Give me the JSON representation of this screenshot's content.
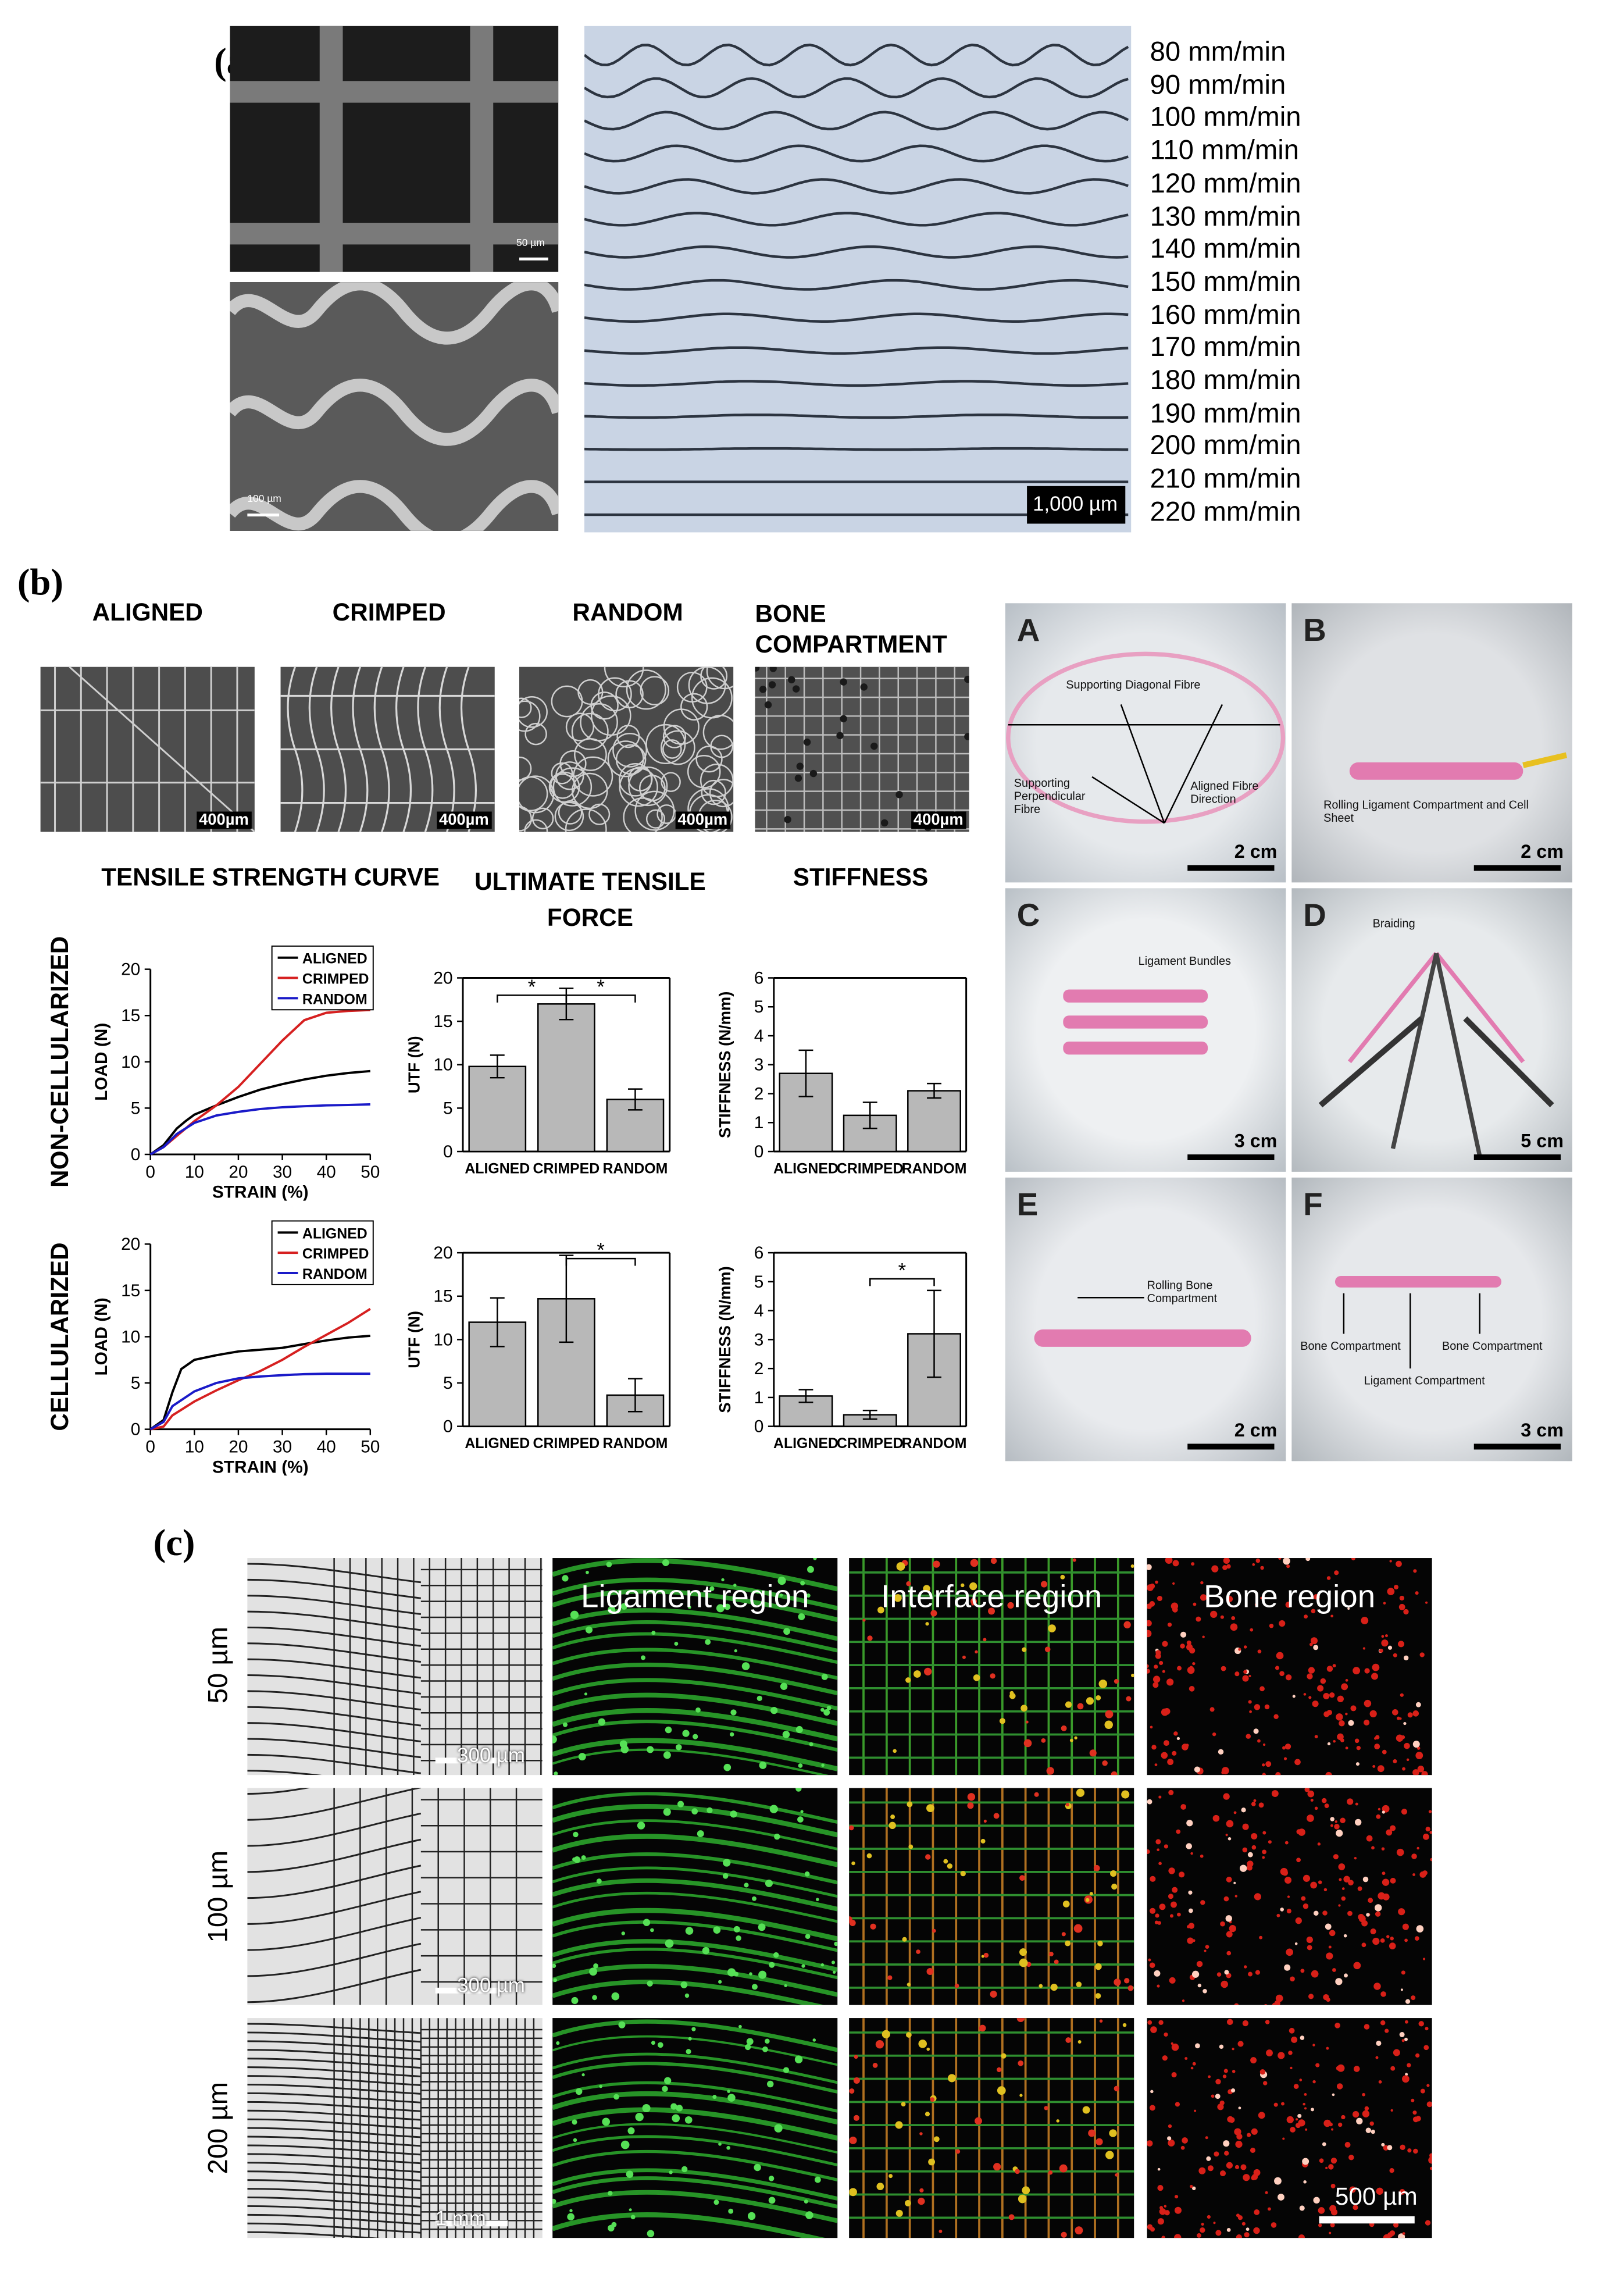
{
  "panel_labels": {
    "a": "(a)",
    "b": "(b)",
    "c": "(c)"
  },
  "panel_a": {
    "sem_scale_top": "50 µm",
    "sem_scale_bottom": "100 µm",
    "stereo_scale": "1,000 µm",
    "speeds": [
      "80 mm/min",
      "90 mm/min",
      "100 mm/min",
      "110 mm/min",
      "120 mm/min",
      "130 mm/min",
      "140 mm/min",
      "150 mm/min",
      "160 mm/min",
      "170 mm/min",
      "180 mm/min",
      "190 mm/min",
      "200 mm/min",
      "210 mm/min",
      "220 mm/min"
    ]
  },
  "panel_b": {
    "micrograph_titles": [
      "ALIGNED",
      "CRIMPED",
      "RANDOM",
      "BONE COMPARTMENT"
    ],
    "micrograph_scale": "400µm",
    "column_titles": {
      "tensile": "TENSILE STRENGTH CURVE",
      "utf": "ULTIMATE TENSILE FORCE",
      "stiffness": "STIFFNESS"
    },
    "row_titles": {
      "noncell": "NON-CELLULARIZED",
      "cell": "CELLULARIZED"
    },
    "photos": [
      {
        "tag": "A",
        "scale": "2 cm",
        "notes": [
          "Supporting Diagonal Fibre",
          "Supporting Perpendicular Fibre",
          "Aligned Fibre Direction"
        ]
      },
      {
        "tag": "B",
        "scale": "2 cm",
        "notes": [
          "Rolling Ligament Compartment and Cell Sheet"
        ]
      },
      {
        "tag": "C",
        "scale": "3 cm",
        "notes": [
          "Ligament Bundles"
        ]
      },
      {
        "tag": "D",
        "scale": "5 cm",
        "notes": [
          "Braiding"
        ]
      },
      {
        "tag": "E",
        "scale": "2 cm",
        "notes": [
          "Rolling Bone Compartment"
        ]
      },
      {
        "tag": "F",
        "scale": "3 cm",
        "notes": [
          "Bone Compartment",
          "Bone Compartment",
          "Ligament Compartment"
        ]
      }
    ]
  },
  "panel_c": {
    "region_titles": [
      "Ligament region",
      "Interface region",
      "Bone region"
    ],
    "row_labels": [
      "50 µm",
      "100 µm",
      "200 µm"
    ],
    "left_scales": [
      "300 µm",
      "300 µm",
      "1 mm"
    ],
    "right_scale": "500 µm"
  },
  "chart_data": [
    {
      "type": "line",
      "title": "",
      "xlabel": "STRAIN (%)",
      "ylabel": "LOAD (N)",
      "xlim": [
        0,
        50
      ],
      "ylim": [
        0,
        20
      ],
      "xticks": [
        0,
        10,
        20,
        30,
        40,
        50
      ],
      "yticks": [
        0,
        5,
        10,
        15,
        20
      ],
      "legend": "top-right",
      "series": [
        {
          "name": "ALIGNED",
          "color": "#000000",
          "x": [
            0,
            3,
            6,
            8,
            10,
            15,
            20,
            25,
            30,
            35,
            40,
            45,
            50
          ],
          "y": [
            0,
            1,
            2.8,
            3.6,
            4.3,
            5.3,
            6.2,
            7,
            7.6,
            8.1,
            8.5,
            8.8,
            9
          ]
        },
        {
          "name": "CRIMPED",
          "color": "#d62020",
          "x": [
            0,
            3,
            6,
            10,
            15,
            20,
            25,
            30,
            35,
            40,
            45,
            50
          ],
          "y": [
            0,
            0.8,
            2,
            3.6,
            5.3,
            7.3,
            9.8,
            12.3,
            14.5,
            15.3,
            15.5,
            15.6
          ]
        },
        {
          "name": "RANDOM",
          "color": "#1a1ac8",
          "x": [
            0,
            3,
            6,
            10,
            15,
            20,
            25,
            30,
            35,
            40,
            45,
            50
          ],
          "y": [
            0,
            0.8,
            2.2,
            3.4,
            4.2,
            4.6,
            4.9,
            5.1,
            5.2,
            5.3,
            5.35,
            5.4
          ]
        }
      ]
    },
    {
      "type": "bar",
      "title": "",
      "xlabel": "",
      "ylabel": "UTF (N)",
      "ylim": [
        0,
        20
      ],
      "yticks": [
        0,
        5,
        10,
        15,
        20
      ],
      "categories": [
        "ALIGNED",
        "CRIMPED",
        "RANDOM"
      ],
      "values": [
        9.8,
        17,
        6
      ],
      "errors": [
        1.3,
        1.8,
        1.2
      ],
      "significance": [
        {
          "pair": [
            0,
            1
          ],
          "label": "*"
        },
        {
          "pair": [
            1,
            2
          ],
          "label": "*"
        }
      ]
    },
    {
      "type": "bar",
      "title": "",
      "xlabel": "",
      "ylabel": "STIFFNESS (N/mm)",
      "ylim": [
        0,
        6
      ],
      "yticks": [
        0,
        1,
        2,
        3,
        4,
        5,
        6
      ],
      "categories": [
        "ALIGNED",
        "CRIMPED",
        "RANDOM"
      ],
      "values": [
        2.7,
        1.25,
        2.1
      ],
      "errors": [
        0.8,
        0.45,
        0.25
      ],
      "significance": []
    },
    {
      "type": "line",
      "title": "",
      "xlabel": "STRAIN (%)",
      "ylabel": "LOAD (N)",
      "xlim": [
        0,
        50
      ],
      "ylim": [
        0,
        20
      ],
      "xticks": [
        0,
        10,
        20,
        30,
        40,
        50
      ],
      "yticks": [
        0,
        5,
        10,
        15,
        20
      ],
      "legend": "top-right",
      "series": [
        {
          "name": "ALIGNED",
          "color": "#000000",
          "x": [
            0,
            3,
            5,
            7,
            10,
            15,
            20,
            25,
            30,
            35,
            40,
            45,
            50
          ],
          "y": [
            0,
            1,
            4,
            6.5,
            7.5,
            8,
            8.4,
            8.6,
            8.8,
            9.2,
            9.6,
            9.9,
            10.1
          ]
        },
        {
          "name": "CRIMPED",
          "color": "#d62020",
          "x": [
            0,
            3,
            5,
            10,
            15,
            20,
            25,
            30,
            35,
            40,
            45,
            50
          ],
          "y": [
            0,
            0.3,
            1.5,
            3,
            4.2,
            5.3,
            6.3,
            7.5,
            8.9,
            10.2,
            11.5,
            13
          ]
        },
        {
          "name": "RANDOM",
          "color": "#1a1ac8",
          "x": [
            0,
            3,
            5,
            10,
            15,
            20,
            25,
            30,
            35,
            40,
            45,
            50
          ],
          "y": [
            0,
            0.8,
            2.5,
            4.1,
            5,
            5.5,
            5.7,
            5.85,
            5.95,
            6,
            6,
            6
          ]
        }
      ]
    },
    {
      "type": "bar",
      "title": "",
      "xlabel": "",
      "ylabel": "UTF (N)",
      "ylim": [
        0,
        20
      ],
      "yticks": [
        0,
        5,
        10,
        15,
        20
      ],
      "categories": [
        "ALIGNED",
        "CRIMPED",
        "RANDOM"
      ],
      "values": [
        12,
        14.7,
        3.6
      ],
      "errors": [
        2.8,
        5,
        1.9
      ],
      "significance": [
        {
          "pair": [
            1,
            2
          ],
          "label": "*"
        }
      ]
    },
    {
      "type": "bar",
      "title": "",
      "xlabel": "",
      "ylabel": "STIFFNESS (N/mm)",
      "ylim": [
        0,
        6
      ],
      "yticks": [
        0,
        1,
        2,
        3,
        4,
        5,
        6
      ],
      "categories": [
        "ALIGNED",
        "CRIMPED",
        "RANDOM"
      ],
      "values": [
        1.05,
        0.4,
        3.2
      ],
      "errors": [
        0.22,
        0.15,
        1.5
      ],
      "significance": [
        {
          "pair": [
            1,
            2
          ],
          "label": "*"
        }
      ]
    }
  ]
}
